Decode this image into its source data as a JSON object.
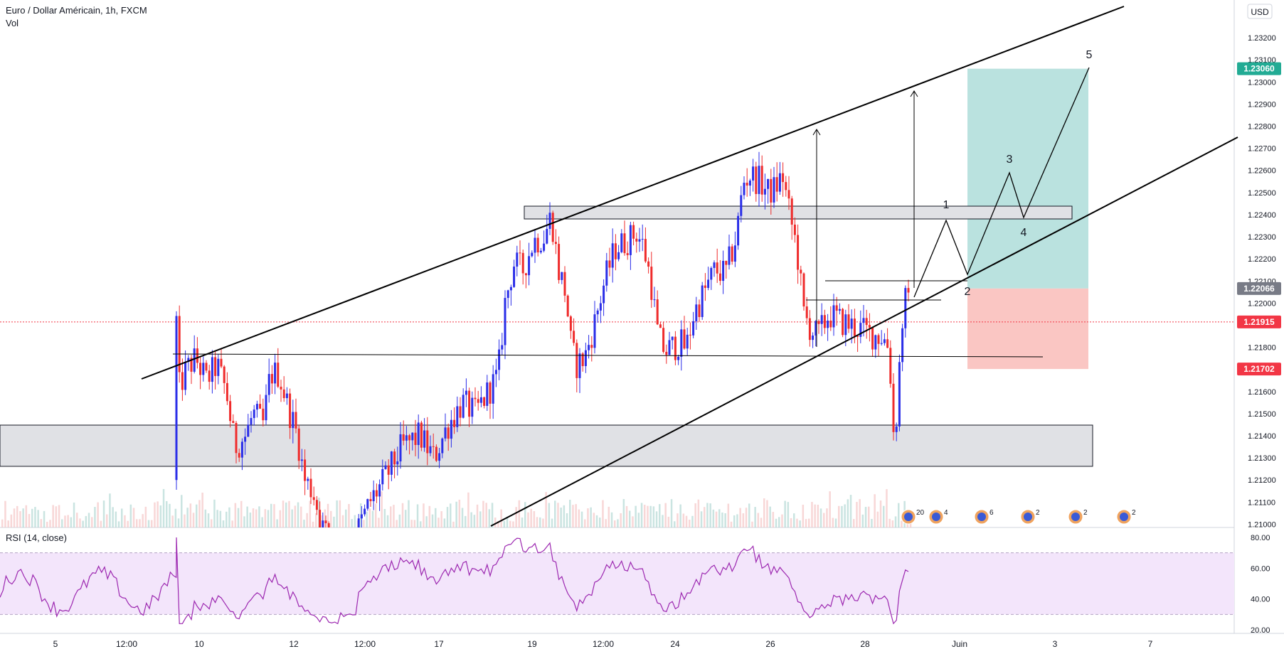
{
  "header": {
    "title": "Euro / Dollar Américain, 1h, FXCM",
    "volume_label": "Vol",
    "currency_button": "USD"
  },
  "price_axis": {
    "ticks": [
      "1.23200",
      "1.23100",
      "1.23000",
      "1.22900",
      "1.22800",
      "1.22700",
      "1.22600",
      "1.22500",
      "1.22400",
      "1.22300",
      "1.22200",
      "1.22100",
      "1.22000",
      "1.21900",
      "1.21800",
      "1.21700",
      "1.21600",
      "1.21500",
      "1.21400",
      "1.21300",
      "1.21200",
      "1.21100",
      "1.21000"
    ],
    "markers": [
      {
        "label": "1.23060",
        "value": 1.2306,
        "color": "#22ab94"
      },
      {
        "label": "1.22066",
        "value": 1.22066,
        "color": "#787b86"
      },
      {
        "label": "1.21915",
        "value": 1.21915,
        "color": "#f23645"
      },
      {
        "label": "1.21702",
        "value": 1.21702,
        "color": "#f23645"
      }
    ]
  },
  "rsi": {
    "label": "RSI (14, close)",
    "ticks": [
      "80.00",
      "60.00",
      "40.00",
      "20.00"
    ],
    "upper_band": 70,
    "lower_band": 30,
    "line_color": "#9c27b0",
    "band_fill": "#f3e5fb"
  },
  "time_axis": {
    "labels": [
      "5",
      "12:00",
      "10",
      "12",
      "12:00",
      "17",
      "19",
      "12:00",
      "24",
      "26",
      "28",
      "Juin",
      "3",
      "7"
    ]
  },
  "events": [
    {
      "index": 0,
      "number": "20"
    },
    {
      "index": 1,
      "number": "4"
    },
    {
      "index": 2,
      "number": "6"
    },
    {
      "index": 3,
      "number": "2"
    },
    {
      "index": 4,
      "number": "2"
    },
    {
      "index": 5,
      "number": "2"
    }
  ],
  "wave_labels": [
    "1",
    "2",
    "3",
    "4",
    "5"
  ],
  "colors": {
    "up": "#2a2ee8",
    "down": "#ef2b2b",
    "target_zone": "#b2dfdb",
    "stop_zone": "#f9c0bd",
    "zone_gray": "#e0e1e5",
    "current_line": "#f23645",
    "trend_line": "#000000"
  },
  "chart_data": {
    "type": "candlestick",
    "title": "Euro / Dollar Américain, 1h, FXCM",
    "ylim": [
      1.2095,
      1.2328
    ],
    "price_levels": {
      "take_profit": 1.2306,
      "entry": 1.22066,
      "current": 1.21915,
      "stop_loss": 1.21702
    },
    "path_anchors": [
      {
        "t": "May 4",
        "price": 1.211
      },
      {
        "t": "May 7",
        "price": 1.2168
      },
      {
        "t": "May 10",
        "price": 1.2172
      },
      {
        "t": "May 11",
        "price": 1.2135
      },
      {
        "t": "May 12",
        "price": 1.2165
      },
      {
        "t": "May 13",
        "price": 1.2107
      },
      {
        "t": "May 14",
        "price": 1.209
      },
      {
        "t": "May 17",
        "price": 1.2148
      },
      {
        "t": "May 18",
        "price": 1.2227
      },
      {
        "t": "May 19",
        "price": 1.224
      },
      {
        "t": "May 20",
        "price": 1.2173
      },
      {
        "t": "May 21",
        "price": 1.2228
      },
      {
        "t": "May 24",
        "price": 1.218
      },
      {
        "t": "May 25",
        "price": 1.2245
      },
      {
        "t": "May 26",
        "price": 1.2262
      },
      {
        "t": "May 27",
        "price": 1.219
      },
      {
        "t": "May 28",
        "price": 1.2175
      },
      {
        "t": "May 31",
        "price": 1.22
      },
      {
        "t": "Jun 1",
        "price": 1.21915
      }
    ],
    "projected_path": [
      1.21915,
      1.2235,
      1.2208,
      1.2256,
      1.2235,
      1.2306
    ]
  }
}
